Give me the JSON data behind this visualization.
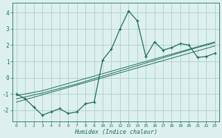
{
  "xlabel": "Humidex (Indice chaleur)",
  "x_values": [
    0,
    1,
    2,
    3,
    4,
    5,
    6,
    7,
    8,
    9,
    10,
    11,
    12,
    13,
    14,
    15,
    16,
    17,
    18,
    19,
    20,
    21,
    22,
    23
  ],
  "main_line": [
    -1.0,
    -1.3,
    -1.8,
    -2.3,
    -2.1,
    -1.9,
    -2.2,
    -2.1,
    -1.6,
    -1.5,
    1.1,
    1.75,
    3.0,
    4.1,
    3.5,
    1.3,
    2.2,
    1.7,
    1.85,
    2.1,
    2.0,
    1.25,
    1.3,
    1.5
  ],
  "line1": [
    -1.1,
    -1.0,
    -0.9,
    -0.8,
    -0.65,
    -0.5,
    -0.35,
    -0.2,
    -0.05,
    0.1,
    0.25,
    0.4,
    0.55,
    0.7,
    0.85,
    1.0,
    1.15,
    1.3,
    1.45,
    1.6,
    1.75,
    1.9,
    2.05,
    2.2
  ],
  "line2": [
    -1.3,
    -1.18,
    -1.06,
    -0.94,
    -0.8,
    -0.66,
    -0.52,
    -0.38,
    -0.22,
    -0.06,
    0.1,
    0.26,
    0.42,
    0.58,
    0.74,
    0.9,
    1.06,
    1.22,
    1.38,
    1.54,
    1.7,
    1.86,
    2.0,
    2.14
  ],
  "line3": [
    -1.5,
    -1.35,
    -1.2,
    -1.05,
    -0.9,
    -0.75,
    -0.6,
    -0.45,
    -0.3,
    -0.15,
    0.0,
    0.15,
    0.3,
    0.45,
    0.6,
    0.75,
    0.9,
    1.05,
    1.2,
    1.35,
    1.5,
    1.65,
    1.8,
    1.95
  ],
  "bg_color": "#ddf0ee",
  "line_color": "#1a6b5a",
  "grid_color": "#aacfcc",
  "xlim": [
    -0.5,
    23.5
  ],
  "ylim": [
    -2.7,
    4.6
  ],
  "yticks": [
    -2,
    -1,
    0,
    1,
    2,
    3,
    4
  ],
  "xticks": [
    0,
    1,
    2,
    3,
    4,
    5,
    6,
    7,
    8,
    9,
    10,
    11,
    12,
    13,
    14,
    15,
    16,
    17,
    18,
    19,
    20,
    21,
    22,
    23
  ]
}
